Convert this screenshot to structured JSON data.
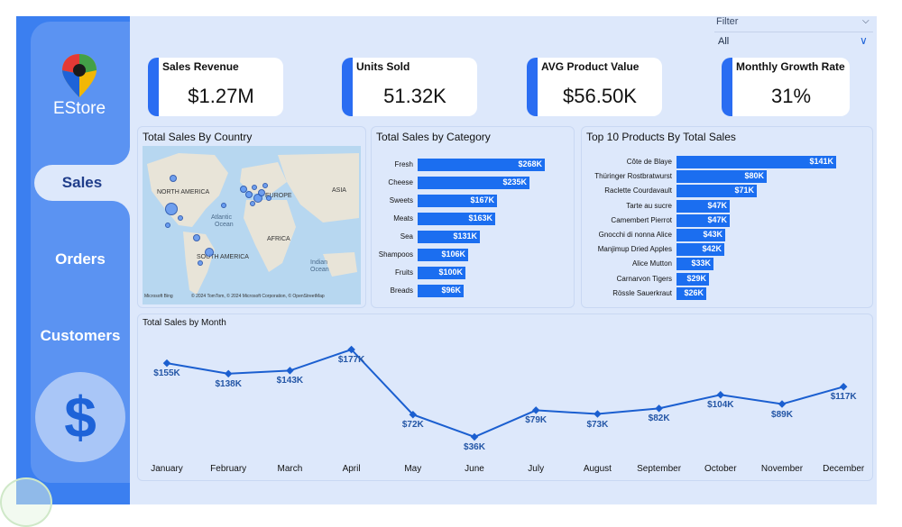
{
  "brand": {
    "name": "EStore"
  },
  "nav": {
    "items": [
      {
        "label": "Sales"
      },
      {
        "label": "Orders"
      },
      {
        "label": "Customers"
      }
    ]
  },
  "filter": {
    "label": "Filter",
    "value": "All"
  },
  "kpis": [
    {
      "label": "Sales Revenue",
      "value": "$1.27M"
    },
    {
      "label": "Units Sold",
      "value": "51.32K"
    },
    {
      "label": "AVG Product Value",
      "value": "$56.50K"
    },
    {
      "label": "Monthly Growth Rate",
      "value": "31%"
    }
  ],
  "map_card": {
    "title": "Total Sales By Country",
    "labels": [
      "NORTH AMERICA",
      "EUROPE",
      "ASIA",
      "Atlantic",
      "Ocean",
      "AFRICA",
      "SOUTH AMERICA",
      "Indian",
      "Ocean"
    ],
    "attribution": "© 2024 TomTom, © 2024 Microsoft Corporation, © OpenStreetMap",
    "bing": "Microsoft Bing"
  },
  "chart_data": [
    {
      "type": "bar",
      "title": "Total Sales by Category",
      "categories": [
        "Fresh",
        "Cheese",
        "Sweets",
        "Meats",
        "Sea",
        "Shampoos",
        "Fruits",
        "Breads"
      ],
      "values": [
        268,
        235,
        167,
        163,
        131,
        106,
        100,
        96
      ],
      "value_labels": [
        "$268K",
        "$235K",
        "$167K",
        "$163K",
        "$131K",
        "$106K",
        "$100K",
        "$96K"
      ],
      "orientation": "horizontal"
    },
    {
      "type": "bar",
      "title": "Top 10 Products By Total Sales",
      "categories": [
        "Côte de Blaye",
        "Thüringer Rostbratwurst",
        "Raclette Courdavault",
        "Tarte au sucre",
        "Camembert Pierrot",
        "Gnocchi di nonna Alice",
        "Manjimup Dried Apples",
        "Alice Mutton",
        "Carnarvon Tigers",
        "Rössle Sauerkraut"
      ],
      "values": [
        141,
        80,
        71,
        47,
        47,
        43,
        42,
        33,
        29,
        26
      ],
      "value_labels": [
        "$141K",
        "$80K",
        "$71K",
        "$47K",
        "$47K",
        "$43K",
        "$42K",
        "$33K",
        "$29K",
        "$26K"
      ],
      "orientation": "horizontal"
    },
    {
      "type": "line",
      "title": "Total Sales by Month",
      "categories": [
        "January",
        "February",
        "March",
        "April",
        "May",
        "June",
        "July",
        "August",
        "September",
        "October",
        "November",
        "December"
      ],
      "values": [
        155,
        138,
        143,
        177,
        72,
        36,
        79,
        73,
        82,
        104,
        89,
        117
      ],
      "value_labels": [
        "$155K",
        "$138K",
        "$143K",
        "$177K",
        "$72K",
        "$36K",
        "$79K",
        "$73K",
        "$82K",
        "$104K",
        "$89K",
        "$117K"
      ],
      "ylim": [
        36,
        177
      ]
    }
  ],
  "colors": {
    "accent": "#1b6ef0",
    "nav": "#3b7ff0",
    "panel": "#dde8fb"
  }
}
